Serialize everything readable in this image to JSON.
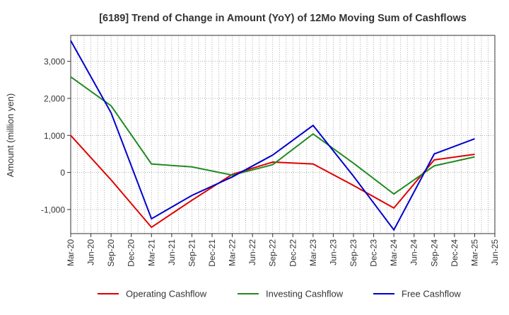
{
  "chart_data": {
    "type": "line",
    "title": "[6189]  Trend of Change in Amount (YoY) of 12Mo Moving Sum of Cashflows",
    "xlabel": "",
    "ylabel": "Amount (million yen)",
    "ylim": [
      -1650,
      3700
    ],
    "yticks": [
      -1000,
      0,
      1000,
      2000,
      3000
    ],
    "ytick_labels": [
      "-1,000",
      "0",
      "1,000",
      "2,000",
      "3,000"
    ],
    "categories": [
      "Mar-20",
      "Jun-20",
      "Sep-20",
      "Dec-20",
      "Mar-21",
      "Jun-21",
      "Sep-21",
      "Dec-21",
      "Mar-22",
      "Jun-22",
      "Sep-22",
      "Dec-22",
      "Mar-23",
      "Jun-23",
      "Sep-23",
      "Dec-23",
      "Mar-24",
      "Jun-24",
      "Sep-24",
      "Dec-24",
      "Mar-25",
      "Jun-25"
    ],
    "grid": true,
    "legend_position": "bottom",
    "series": [
      {
        "name": "Operating Cashflow",
        "color": "#e00000",
        "points": [
          [
            0,
            1000
          ],
          [
            2,
            -200
          ],
          [
            4,
            -1480
          ],
          [
            6,
            -750
          ],
          [
            8,
            -50
          ],
          [
            10,
            280
          ],
          [
            12,
            230
          ],
          [
            14,
            -350
          ],
          [
            16,
            -960
          ],
          [
            18,
            340
          ],
          [
            20,
            490
          ]
        ]
      },
      {
        "name": "Investing Cashflow",
        "color": "#228B22",
        "points": [
          [
            0,
            2580
          ],
          [
            2,
            1800
          ],
          [
            4,
            230
          ],
          [
            6,
            150
          ],
          [
            8,
            -70
          ],
          [
            10,
            210
          ],
          [
            12,
            1040
          ],
          [
            14,
            250
          ],
          [
            16,
            -580
          ],
          [
            18,
            180
          ],
          [
            20,
            420
          ]
        ]
      },
      {
        "name": "Free Cashflow",
        "color": "#0000cc",
        "points": [
          [
            0,
            3560
          ],
          [
            2,
            1610
          ],
          [
            4,
            -1250
          ],
          [
            6,
            -620
          ],
          [
            8,
            -120
          ],
          [
            10,
            470
          ],
          [
            12,
            1270
          ],
          [
            14,
            -100
          ],
          [
            16,
            -1550
          ],
          [
            18,
            500
          ],
          [
            20,
            910
          ]
        ]
      }
    ]
  }
}
